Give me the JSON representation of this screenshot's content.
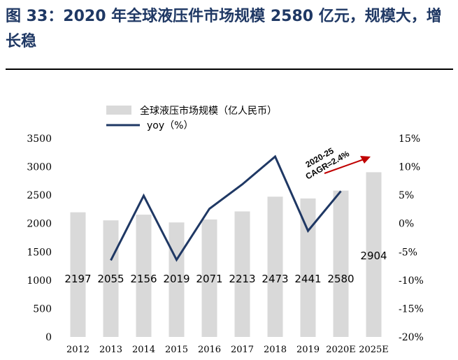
{
  "title": "图 33：2020 年全球液压件市场规模 2580 亿元，规模大，增长稳",
  "colors": {
    "bar": "#d9d9d9",
    "line": "#1f3864",
    "arrow": "#c00000"
  },
  "chart_data": {
    "type": "bar",
    "categories": [
      "2012",
      "2013",
      "2014",
      "2015",
      "2016",
      "2017",
      "2018",
      "2019",
      "2020E",
      "2025E"
    ],
    "series": [
      {
        "name": "全球液压市场规模（亿人民币）",
        "type": "bar",
        "axis": "left",
        "values": [
          2197,
          2055,
          2156,
          2019,
          2071,
          2213,
          2473,
          2441,
          2580,
          2904
        ]
      },
      {
        "name": "yoy（%）",
        "type": "line",
        "axis": "right",
        "values": [
          null,
          -6.5,
          4.9,
          -6.4,
          2.6,
          6.9,
          11.8,
          -1.3,
          5.7,
          null
        ]
      }
    ],
    "data_labels": [
      "2197",
      "2055",
      "2156",
      "2019",
      "2071",
      "2213",
      "2473",
      "2441",
      "2580",
      "2904"
    ],
    "ylim_left": [
      0,
      3500
    ],
    "yticks_left": [
      "0",
      "500",
      "1000",
      "1500",
      "2000",
      "2500",
      "3000",
      "3500"
    ],
    "ylim_right": [
      -20,
      15
    ],
    "yticks_right": [
      "-20%",
      "-15%",
      "-10%",
      "-5%",
      "0%",
      "5%",
      "10%",
      "15%"
    ],
    "legend": {
      "bar": "全球液压市场规模（亿人民币）",
      "line": "yoy（%）"
    },
    "annotation": {
      "line1": "2020-25",
      "line2": "CAGR=2.4%"
    }
  }
}
